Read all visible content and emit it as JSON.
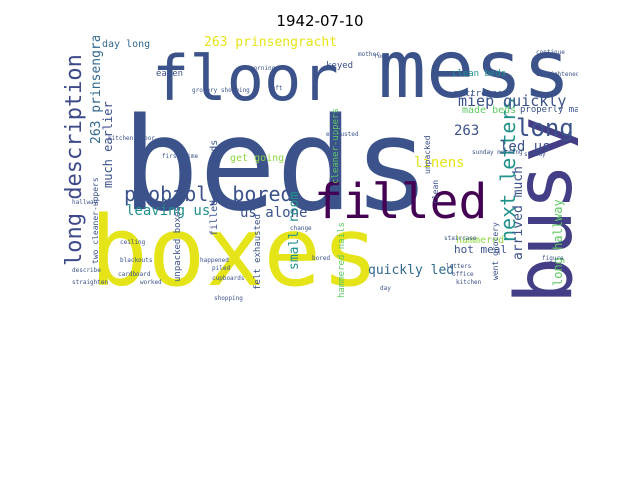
{
  "figure": {
    "title": "1942-07-10"
  },
  "wordcloud": {
    "colors": {
      "yellow": "#e5e419",
      "navy": "#3b528b",
      "purple": "#440154",
      "green": "#5ec962",
      "teal": "#21918c",
      "lightgreen": "#90d743",
      "blue": "#31688e"
    },
    "words": [
      {
        "text": "beds",
        "color": "#3b528b"
      },
      {
        "text": "boxes",
        "color": "#e5e419"
      },
      {
        "text": "mess",
        "color": "#3b528b"
      },
      {
        "text": "floor",
        "color": "#3b528b"
      },
      {
        "text": "busy",
        "color": "#433e85"
      },
      {
        "text": "filled",
        "color": "#440154"
      },
      {
        "text": "probably bored",
        "color": "#3b528b"
      },
      {
        "text": "long description",
        "color": "#3e4a89"
      },
      {
        "text": "next letters",
        "color": "#21918c"
      },
      {
        "text": "long",
        "color": "#3b528b"
      },
      {
        "text": "long hallway",
        "color": "#5ec962"
      },
      {
        "text": "miep quickly",
        "color": "#3b528b"
      },
      {
        "text": "263 prinsengracht",
        "color": "#31688e"
      },
      {
        "text": "263 prinsengracht",
        "color": "#e5e419"
      },
      {
        "text": "much earlier",
        "color": "#3b528b"
      },
      {
        "text": "leaving us",
        "color": "#21918c"
      },
      {
        "text": "us alone",
        "color": "#3b528b"
      },
      {
        "text": "small room",
        "color": "#21918c"
      },
      {
        "text": "quickly led",
        "color": "#31688e"
      },
      {
        "text": "led us",
        "color": "#3b528b"
      },
      {
        "text": "linens",
        "color": "#e5e419"
      },
      {
        "text": "arrived much",
        "color": "#3b528b"
      },
      {
        "text": "hot meal",
        "color": "#3b528b"
      },
      {
        "text": "hammered",
        "color": "#90d743"
      },
      {
        "text": "263",
        "color": "#3b528b"
      },
      {
        "text": "made beds",
        "color": "#5ec962"
      },
      {
        "text": "properly made",
        "color": "#3b528b"
      },
      {
        "text": "clean beds",
        "color": "#21918c"
      },
      {
        "text": "mattresses",
        "color": "#3b528b"
      },
      {
        "text": "day long",
        "color": "#31688e"
      },
      {
        "text": "eaten",
        "color": "#3b528b"
      },
      {
        "text": "keyed",
        "color": "#3b528b"
      },
      {
        "text": "filled cupboards",
        "color": "#3b528b"
      },
      {
        "text": "get going",
        "color": "#90d743"
      },
      {
        "text": "unpacked boxes",
        "color": "#3b528b"
      },
      {
        "text": "felt exhausted",
        "color": "#3b528b"
      },
      {
        "text": "hammered nails",
        "color": "#5ec962"
      },
      {
        "text": "two cleaner-uppers",
        "color": "#3b528b"
      },
      {
        "text": "cleaner-uppers",
        "color": "#5ec962"
      },
      {
        "text": "went grocery",
        "color": "#3b528b"
      },
      {
        "text": "unpacked",
        "color": "#3b528b"
      },
      {
        "text": "clean",
        "color": "#3b528b"
      },
      {
        "text": "grocery shopping",
        "color": "#3b528b"
      },
      {
        "text": "kitchen floor",
        "color": "#3b528b"
      },
      {
        "text": "first time",
        "color": "#3b528b"
      },
      {
        "text": "blackouts",
        "color": "#3b528b"
      },
      {
        "text": "sunday morning",
        "color": "#3b528b"
      },
      {
        "text": "straighten",
        "color": "#3b528b"
      },
      {
        "text": "shopping",
        "color": "#3b528b"
      },
      {
        "text": "cupboards",
        "color": "#3b528b"
      },
      {
        "text": "describe",
        "color": "#3b528b"
      },
      {
        "text": "happened",
        "color": "#3b528b"
      },
      {
        "text": "ceiling",
        "color": "#3b528b"
      },
      {
        "text": "change",
        "color": "#3b528b"
      },
      {
        "text": "bored",
        "color": "#3b528b"
      },
      {
        "text": "exhausted",
        "color": "#3b528b"
      },
      {
        "text": "staircase",
        "color": "#3b528b"
      },
      {
        "text": "kitchen",
        "color": "#3b528b"
      },
      {
        "text": "cardboard",
        "color": "#3b528b"
      },
      {
        "text": "worked",
        "color": "#3b528b"
      },
      {
        "text": "piled",
        "color": "#3b528b"
      },
      {
        "text": "morning",
        "color": "#3b528b"
      },
      {
        "text": "left",
        "color": "#3b528b"
      },
      {
        "text": "day",
        "color": "#3b528b"
      },
      {
        "text": "straightened",
        "color": "#3b528b"
      },
      {
        "text": "continue",
        "color": "#3b528b"
      },
      {
        "text": "mother",
        "color": "#3b528b"
      },
      {
        "text": "office",
        "color": "#3b528b"
      },
      {
        "text": "figure",
        "color": "#3b528b"
      },
      {
        "text": "room",
        "color": "#3b528b"
      },
      {
        "text": "letters",
        "color": "#3b528b"
      },
      {
        "text": "sunday",
        "color": "#3b528b"
      },
      {
        "text": "hallway",
        "color": "#3b528b"
      }
    ]
  }
}
